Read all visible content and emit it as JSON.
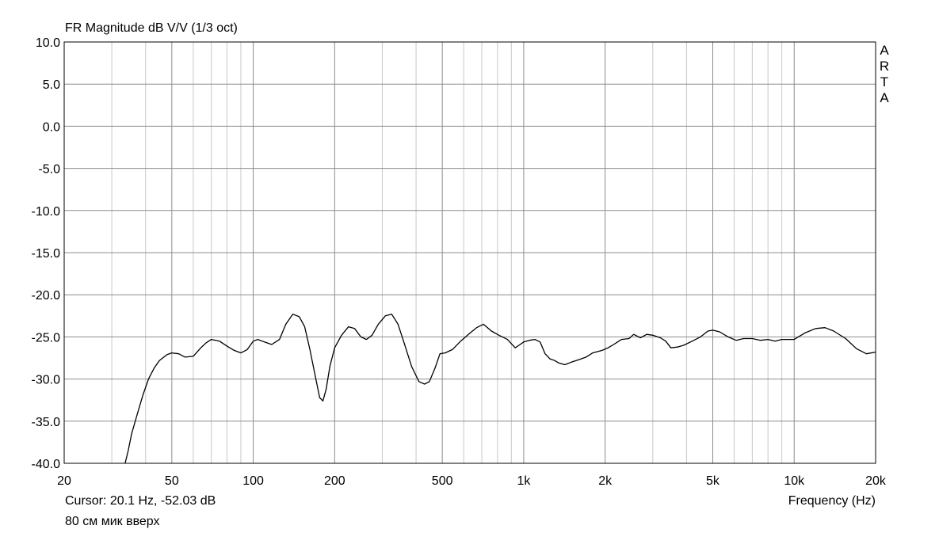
{
  "chart_data": {
    "type": "line",
    "title": "FR Magnitude dB V/V (1/3 oct)",
    "xlabel": "Frequency (Hz)",
    "ylabel": "",
    "x_scale": "log",
    "xlim": [
      20,
      20000
    ],
    "ylim": [
      -40,
      10
    ],
    "grid": true,
    "x_ticks": [
      {
        "value": 20,
        "label": "20"
      },
      {
        "value": 50,
        "label": "50"
      },
      {
        "value": 100,
        "label": "100"
      },
      {
        "value": 200,
        "label": "200"
      },
      {
        "value": 500,
        "label": "500"
      },
      {
        "value": 1000,
        "label": "1k"
      },
      {
        "value": 2000,
        "label": "2k"
      },
      {
        "value": 5000,
        "label": "5k"
      },
      {
        "value": 10000,
        "label": "10k"
      },
      {
        "value": 20000,
        "label": "20k"
      }
    ],
    "y_ticks": [
      {
        "value": 10,
        "label": "10.0"
      },
      {
        "value": 5,
        "label": "5.0"
      },
      {
        "value": 0,
        "label": "0.0"
      },
      {
        "value": -5,
        "label": "-5.0"
      },
      {
        "value": -10,
        "label": "-10.0"
      },
      {
        "value": -15,
        "label": "-15.0"
      },
      {
        "value": -20,
        "label": "-20.0"
      },
      {
        "value": -25,
        "label": "-25.0"
      },
      {
        "value": -30,
        "label": "-30.0"
      },
      {
        "value": -35,
        "label": "-35.0"
      },
      {
        "value": -40,
        "label": "-40.0"
      }
    ],
    "minor_x_grid": [
      30,
      40,
      60,
      70,
      80,
      90,
      300,
      400,
      600,
      700,
      800,
      900,
      3000,
      4000,
      6000,
      7000,
      8000,
      9000
    ],
    "series": [
      {
        "color": "#000000",
        "x": [
          33.6,
          34.5,
          35.5,
          37,
          39,
          41,
          43,
          45,
          48,
          50,
          53,
          56,
          60,
          64,
          67,
          70,
          75,
          80,
          85,
          90,
          95,
          100,
          104,
          110,
          117,
          125,
          132,
          140,
          148,
          155,
          162,
          170,
          176,
          181,
          186,
          192,
          200,
          212,
          225,
          237,
          250,
          262,
          275,
          290,
          308,
          325,
          343,
          362,
          385,
          410,
          430,
          448,
          470,
          490,
          512,
          545,
          585,
          630,
          670,
          710,
          760,
          810,
          870,
          930,
          960,
          1000,
          1050,
          1100,
          1150,
          1200,
          1250,
          1300,
          1350,
          1420,
          1500,
          1600,
          1700,
          1800,
          1950,
          2050,
          2150,
          2300,
          2450,
          2550,
          2700,
          2850,
          3000,
          3200,
          3350,
          3500,
          3700,
          3900,
          4200,
          4500,
          4800,
          5000,
          5300,
          5700,
          6100,
          6500,
          7000,
          7500,
          8000,
          8500,
          9000,
          9500,
          10000,
          11000,
          12000,
          13000,
          14000,
          15500,
          17000,
          18500,
          20000
        ],
        "y": [
          -40,
          -38.5,
          -36.5,
          -34.5,
          -32,
          -30,
          -28.7,
          -27.8,
          -27.1,
          -26.9,
          -27.0,
          -27.4,
          -27.3,
          -26.3,
          -25.7,
          -25.3,
          -25.5,
          -26.1,
          -26.6,
          -26.9,
          -26.5,
          -25.5,
          -25.3,
          -25.6,
          -25.9,
          -25.3,
          -23.5,
          -22.3,
          -22.6,
          -23.8,
          -26.5,
          -29.8,
          -32.2,
          -32.6,
          -31.2,
          -28.5,
          -26.3,
          -24.8,
          -23.8,
          -24.0,
          -25.0,
          -25.3,
          -24.8,
          -23.5,
          -22.5,
          -22.3,
          -23.5,
          -25.8,
          -28.5,
          -30.3,
          -30.6,
          -30.3,
          -28.7,
          -27.0,
          -26.9,
          -26.5,
          -25.5,
          -24.6,
          -23.9,
          -23.5,
          -24.3,
          -24.8,
          -25.3,
          -26.3,
          -26.0,
          -25.6,
          -25.4,
          -25.3,
          -25.6,
          -27.0,
          -27.6,
          -27.8,
          -28.1,
          -28.3,
          -28.0,
          -27.7,
          -27.4,
          -26.9,
          -26.6,
          -26.3,
          -25.9,
          -25.3,
          -25.2,
          -24.7,
          -25.1,
          -24.7,
          -24.8,
          -25.1,
          -25.5,
          -26.3,
          -26.2,
          -26.0,
          -25.5,
          -25.0,
          -24.3,
          -24.2,
          -24.4,
          -25.0,
          -25.4,
          -25.2,
          -25.2,
          -25.4,
          -25.3,
          -25.5,
          -25.3,
          -25.3,
          -25.3,
          -24.5,
          -24.0,
          -23.9,
          -24.3,
          -25.2,
          -26.4,
          -27.0,
          -26.8
        ]
      }
    ],
    "title_text": "FR Magnitude dB V/V (1/3 oct)",
    "cursor_text": "Cursor: 20.1 Hz, -52.03 dB",
    "note_text": "80 см мик вверх",
    "brand": "ARTA"
  }
}
